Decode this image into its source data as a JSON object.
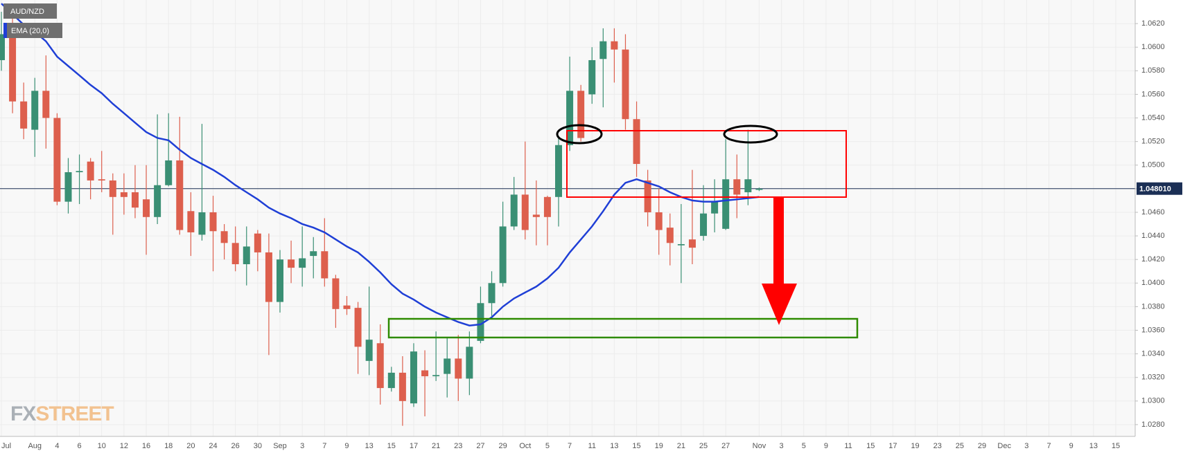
{
  "chart_data": {
    "type": "candlestick",
    "name": "AUD/NZD",
    "up_color": "#3a8f74",
    "down_color": "#dd5f4d",
    "legend": "top-left",
    "grid": true,
    "watermark": {
      "prefix": "FX",
      "suffix": "STREET"
    },
    "categories": [
      "Jul",
      null,
      null,
      "Aug",
      null,
      "4",
      null,
      "6",
      null,
      "10",
      null,
      "12",
      null,
      "16",
      null,
      "18",
      null,
      "20",
      null,
      "24",
      null,
      "26",
      null,
      "30",
      null,
      "Sep",
      null,
      "3",
      null,
      "7",
      null,
      "9",
      null,
      "13",
      null,
      "15",
      null,
      "17",
      null,
      "21",
      null,
      "23",
      null,
      "27",
      null,
      "29",
      null,
      "Oct",
      null,
      "5",
      null,
      "7",
      null,
      "11",
      null,
      "13",
      null,
      "15",
      null,
      "19",
      null,
      "21",
      null,
      "25",
      null,
      "27",
      null,
      null,
      "Nov",
      null,
      "3",
      null,
      "5",
      null,
      "9",
      null,
      "11",
      null,
      "15",
      null,
      "17",
      null,
      "19",
      null,
      "23",
      null,
      "25",
      null,
      "29",
      null,
      "Dec",
      null,
      "3",
      null,
      "7",
      null,
      "9",
      null,
      "13",
      null,
      "15"
    ],
    "open": [
      1.0589,
      1.0614,
      1.0554,
      1.053,
      1.0563,
      1.054,
      1.0469,
      1.0494,
      1.0503,
      1.0488,
      1.0487,
      1.0477,
      1.0477,
      1.0471,
      1.0456,
      1.0483,
      1.0504,
      1.0461,
      1.0441,
      1.046,
      1.0444,
      1.0434,
      1.0416,
      1.0442,
      1.0426,
      1.0384,
      1.042,
      1.0413,
      1.0423,
      1.0427,
      1.0404,
      1.0381,
      1.0379,
      1.0334,
      1.0349,
      1.0311,
      1.0324,
      1.0298,
      1.0326,
      1.0321,
      1.0323,
      1.0336,
      1.0319,
      1.0351,
      1.0383,
      1.04,
      1.0448,
      1.0475,
      1.0458,
      1.0473,
      1.0473,
      1.0517,
      1.0563,
      1.056,
      1.059,
      1.0605,
      1.0598,
      1.0539,
      1.0487,
      1.046,
      1.0447,
      1.0432,
      1.0437,
      1.044,
      1.0459,
      1.0446,
      1.0488,
      1.0477,
      1.0479,
      null,
      null,
      null,
      null,
      null,
      null,
      null,
      null,
      null,
      null,
      null,
      null,
      null,
      null,
      null,
      null,
      null,
      null,
      null,
      null,
      null,
      null,
      null,
      null,
      null,
      null,
      null,
      null,
      null,
      null,
      null,
      null
    ],
    "high": [
      1.063,
      1.0635,
      1.057,
      1.0574,
      1.0593,
      1.0544,
      1.0506,
      1.0509,
      1.0506,
      1.0512,
      1.0493,
      1.0493,
      1.05,
      1.05,
      1.0543,
      1.0544,
      1.0541,
      1.0477,
      1.0535,
      1.0474,
      1.045,
      1.0448,
      1.0448,
      1.0445,
      1.0442,
      1.0428,
      1.0436,
      1.0448,
      1.0439,
      1.0455,
      1.0407,
      1.0389,
      1.0384,
      1.0397,
      1.0365,
      1.0329,
      1.0338,
      1.0349,
      1.0343,
      1.0359,
      1.0354,
      1.0356,
      1.0359,
      1.0397,
      1.041,
      1.0469,
      1.049,
      1.052,
      1.0487,
      1.0474,
      1.0525,
      1.0592,
      1.0568,
      1.06,
      1.0616,
      1.0616,
      1.0611,
      1.0554,
      1.0496,
      1.048,
      1.0459,
      1.0467,
      1.0496,
      1.0483,
      1.0488,
      1.0522,
      1.0509,
      1.053,
      1.0481,
      null,
      null,
      null,
      null,
      null,
      null,
      null,
      null,
      null,
      null,
      null,
      null,
      null,
      null,
      null,
      null,
      null,
      null,
      null,
      null,
      null,
      null,
      null,
      null,
      null,
      null,
      null,
      null,
      null,
      null,
      null,
      null
    ],
    "low": [
      1.058,
      1.0544,
      1.0522,
      1.0507,
      1.0514,
      1.0466,
      1.0459,
      1.0467,
      1.0471,
      1.0477,
      1.0441,
      1.0458,
      1.0455,
      1.0424,
      1.045,
      1.0482,
      1.0441,
      1.0423,
      1.0436,
      1.041,
      1.042,
      1.041,
      1.0398,
      1.041,
      1.0339,
      1.0375,
      1.04,
      1.0397,
      1.0404,
      1.0397,
      1.0362,
      1.0373,
      1.0323,
      1.0322,
      1.0297,
      1.0308,
      1.0279,
      1.0295,
      1.0287,
      1.0317,
      1.0303,
      1.03,
      1.0305,
      1.0349,
      1.0372,
      1.0397,
      1.0445,
      1.0437,
      1.0432,
      1.0432,
      1.0448,
      1.0512,
      1.052,
      1.0552,
      1.0549,
      1.057,
      1.053,
      1.049,
      1.0448,
      1.0424,
      1.0415,
      1.04,
      1.0416,
      1.0436,
      1.0443,
      1.0445,
      1.0455,
      1.0466,
      1.0478,
      null,
      null,
      null,
      null,
      null,
      null,
      null,
      null,
      null,
      null,
      null,
      null,
      null,
      null,
      null,
      null,
      null,
      null,
      null,
      null,
      null,
      null,
      null,
      null,
      null,
      null,
      null,
      null,
      null,
      null,
      null,
      null
    ],
    "close": [
      1.0611,
      1.0554,
      1.0531,
      1.0563,
      1.054,
      1.0469,
      1.0494,
      1.0495,
      1.0487,
      1.0487,
      1.0473,
      1.0473,
      1.0464,
      1.0456,
      1.0483,
      1.0504,
      1.0445,
      1.0443,
      1.046,
      1.0444,
      1.0434,
      1.0416,
      1.0431,
      1.0426,
      1.0384,
      1.042,
      1.0413,
      1.0421,
      1.0427,
      1.0404,
      1.0378,
      1.0378,
      1.0346,
      1.0352,
      1.0311,
      1.0324,
      1.03,
      1.0342,
      1.0321,
      1.0322,
      1.0336,
      1.0319,
      1.0346,
      1.0383,
      1.04,
      1.0448,
      1.0475,
      1.0445,
      1.0456,
      1.0456,
      1.0517,
      1.0563,
      1.0523,
      1.0589,
      1.0605,
      1.0598,
      1.0539,
      1.0501,
      1.046,
      1.0445,
      1.0434,
      1.0433,
      1.043,
      1.0459,
      1.0469,
      1.0488,
      1.0475,
      1.0488,
      1.048,
      null,
      null,
      null,
      null,
      null,
      null,
      null,
      null,
      null,
      null,
      null,
      null,
      null,
      null,
      null,
      null,
      null,
      null,
      null,
      null,
      null,
      null,
      null,
      null,
      null,
      null,
      null,
      null,
      null,
      null,
      null,
      null
    ],
    "series": [
      {
        "name": "EMA (20,0)",
        "color": "#1f3fd6",
        "values": [
          1.0637,
          1.0628,
          1.0619,
          1.0613,
          1.0605,
          1.0592,
          1.0584,
          1.0576,
          1.0568,
          1.0561,
          1.0552,
          1.0544,
          1.0536,
          1.0528,
          1.0523,
          1.0521,
          1.0513,
          1.0506,
          1.0501,
          1.0496,
          1.049,
          1.0483,
          1.0477,
          1.0471,
          1.0464,
          1.0459,
          1.0455,
          1.045,
          1.0447,
          1.0443,
          1.0437,
          1.0431,
          1.0426,
          1.0418,
          1.0409,
          1.0399,
          1.0391,
          1.0386,
          1.038,
          1.0375,
          1.0371,
          1.0367,
          1.0364,
          1.0365,
          1.0371,
          1.038,
          1.0387,
          1.0392,
          1.0397,
          1.0404,
          1.0413,
          1.0426,
          1.0437,
          1.0448,
          1.0461,
          1.0475,
          1.0485,
          1.0488,
          1.0485,
          1.0482,
          1.0477,
          1.0473,
          1.047,
          1.0469,
          1.0469,
          1.047,
          1.0471,
          1.0472,
          1.0473,
          null,
          null,
          null,
          null,
          null,
          null,
          null,
          null,
          null,
          null,
          null,
          null,
          null,
          null,
          null,
          null,
          null,
          null,
          null,
          null,
          null,
          null,
          null,
          null,
          null,
          null,
          null,
          null,
          null,
          null,
          null,
          null
        ]
      }
    ],
    "current_price": {
      "value": 1.04801,
      "label": "1.048010"
    },
    "ylim": [
      1.027,
      1.064
    ],
    "yticks": [
      {
        "value": 1.028,
        "label": "1.0280"
      },
      {
        "value": 1.03,
        "label": "1.0300"
      },
      {
        "value": 1.032,
        "label": "1.0320"
      },
      {
        "value": 1.034,
        "label": "1.0340"
      },
      {
        "value": 1.036,
        "label": "1.0360"
      },
      {
        "value": 1.038,
        "label": "1.0380"
      },
      {
        "value": 1.04,
        "label": "1.0400"
      },
      {
        "value": 1.042,
        "label": "1.0420"
      },
      {
        "value": 1.044,
        "label": "1.0440"
      },
      {
        "value": 1.046,
        "label": "1.0460"
      },
      {
        "value": 1.048,
        "label": "1.0480"
      },
      {
        "value": 1.05,
        "label": "1.0500"
      },
      {
        "value": 1.052,
        "label": "1.0520"
      },
      {
        "value": 1.054,
        "label": "1.0540"
      },
      {
        "value": 1.056,
        "label": "1.0560"
      },
      {
        "value": 1.058,
        "label": "1.0580"
      },
      {
        "value": 1.06,
        "label": "1.0600"
      },
      {
        "value": 1.062,
        "label": "1.0620"
      }
    ]
  }
}
